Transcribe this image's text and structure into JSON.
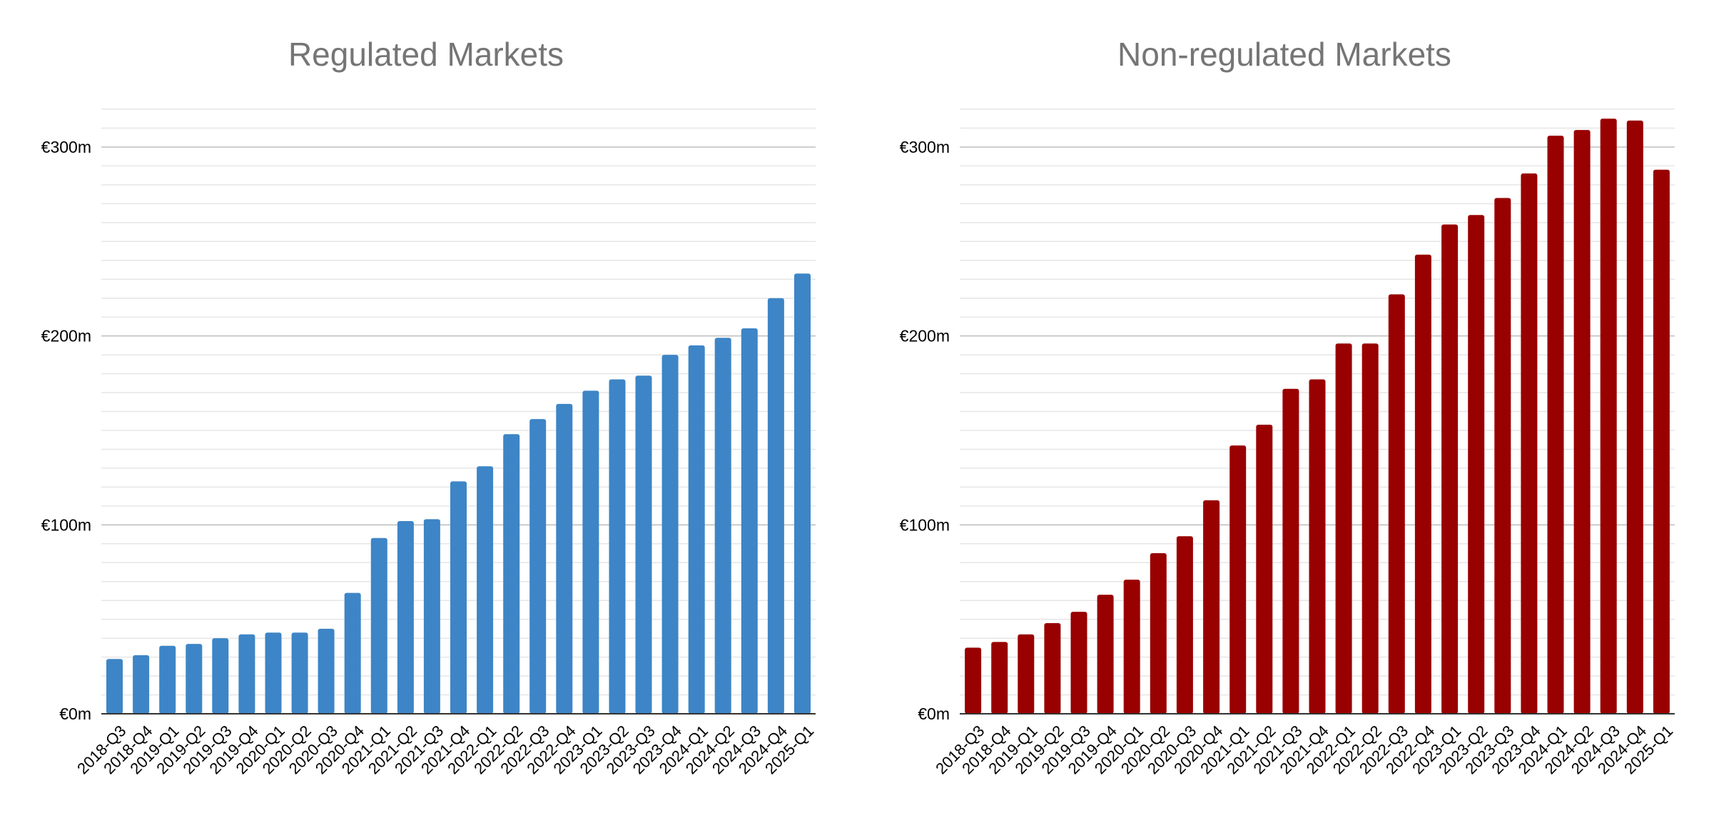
{
  "chart_data": [
    {
      "type": "bar",
      "title": "Regulated Markets",
      "xlabel": "",
      "ylabel": "",
      "ylim": [
        0,
        320
      ],
      "yticks": [
        0,
        100,
        200,
        300
      ],
      "ytick_labels": [
        "€0m",
        "€100m",
        "€200m",
        "€300m"
      ],
      "grid": true,
      "legend": "none",
      "color": "#3d85c6",
      "categories": [
        "2018-Q3",
        "2018-Q4",
        "2019-Q1",
        "2019-Q2",
        "2019-Q3",
        "2019-Q4",
        "2020-Q1",
        "2020-Q2",
        "2020-Q3",
        "2020-Q4",
        "2021-Q1",
        "2021-Q2",
        "2021-Q3",
        "2021-Q4",
        "2022-Q1",
        "2022-Q2",
        "2022-Q3",
        "2022-Q4",
        "2023-Q1",
        "2023-Q2",
        "2023-Q3",
        "2023-Q4",
        "2024-Q1",
        "2024-Q2",
        "2024-Q3",
        "2024-Q4",
        "2025-Q1"
      ],
      "values": [
        29,
        31,
        36,
        37,
        40,
        42,
        43,
        43,
        45,
        64,
        93,
        102,
        103,
        123,
        131,
        148,
        156,
        164,
        171,
        177,
        179,
        190,
        195,
        199,
        204,
        220,
        233
      ]
    },
    {
      "type": "bar",
      "title": "Non-regulated Markets",
      "xlabel": "",
      "ylabel": "",
      "ylim": [
        0,
        320
      ],
      "yticks": [
        0,
        100,
        200,
        300
      ],
      "ytick_labels": [
        "€0m",
        "€100m",
        "€200m",
        "€300m"
      ],
      "grid": true,
      "legend": "none",
      "color": "#990000",
      "categories": [
        "2018-Q3",
        "2018-Q4",
        "2019-Q1",
        "2019-Q2",
        "2019-Q3",
        "2019-Q4",
        "2020-Q1",
        "2020-Q2",
        "2020-Q3",
        "2020-Q4",
        "2021-Q1",
        "2021-Q2",
        "2021-Q3",
        "2021-Q4",
        "2022-Q1",
        "2022-Q2",
        "2022-Q3",
        "2022-Q4",
        "2023-Q1",
        "2023-Q2",
        "2023-Q3",
        "2023-Q4",
        "2024-Q1",
        "2024-Q2",
        "2024-Q3",
        "2024-Q4",
        "2025-Q1"
      ],
      "values": [
        35,
        38,
        42,
        48,
        54,
        63,
        71,
        85,
        94,
        113,
        142,
        153,
        172,
        177,
        196,
        196,
        222,
        243,
        259,
        264,
        273,
        286,
        306,
        309,
        315,
        314,
        288
      ]
    }
  ]
}
